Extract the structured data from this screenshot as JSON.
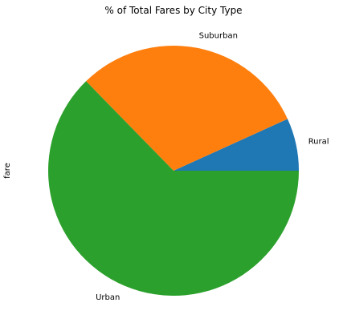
{
  "chart_data": {
    "type": "pie",
    "title": "% of Total Fares by City Type",
    "ylabel": "fare",
    "categories": [
      "Rural",
      "Suburban",
      "Urban"
    ],
    "values": [
      6.8,
      30.5,
      62.7
    ],
    "colors": [
      "#1f77b4",
      "#ff7f0e",
      "#2ca02c"
    ],
    "start_angle_deg": 0,
    "direction": "counterclockwise"
  }
}
